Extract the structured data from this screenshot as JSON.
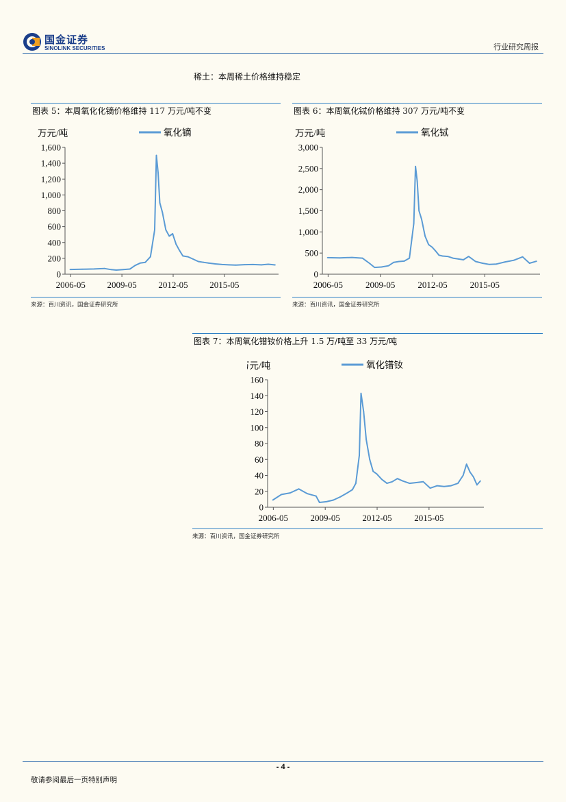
{
  "header": {
    "logo_cn": "国金证券",
    "logo_en": "SINOLINK SECURITIES",
    "report_type": "行业研究周报"
  },
  "section_title": "稀土：本周稀土价格维持稳定",
  "colors": {
    "line": "#5b9bd5",
    "rule": "#2e7fc4",
    "brand": "#1b3e8a"
  },
  "chart_data": [
    {
      "type": "line",
      "title": "图表 5：本周氧化化镝价格维持 117 万元/吨不变",
      "ylabel": "万元/吨",
      "legend": "氧化镝",
      "ylim": [
        0,
        1600
      ],
      "yticks": [
        "0",
        "200",
        "400",
        "600",
        "800",
        "1,000",
        "1,200",
        "1,400",
        "1,600"
      ],
      "xticks": [
        "2006-05",
        "2009-05",
        "2012-05",
        "2015-05"
      ],
      "x": [
        2006.3,
        2007.0,
        2007.7,
        2008.3,
        2008.7,
        2009.0,
        2009.4,
        2009.8,
        2010.1,
        2010.4,
        2010.7,
        2011.0,
        2011.25,
        2011.35,
        2011.45,
        2011.55,
        2011.7,
        2011.9,
        2012.1,
        2012.3,
        2012.5,
        2012.7,
        2012.9,
        2013.2,
        2013.5,
        2013.8,
        2014.1,
        2014.4,
        2014.8,
        2015.2,
        2015.6,
        2016.0,
        2016.5,
        2017.0,
        2017.5,
        2017.9,
        2018.3
      ],
      "values": [
        60,
        62,
        66,
        72,
        58,
        52,
        58,
        65,
        110,
        140,
        150,
        220,
        560,
        1500,
        1280,
        900,
        780,
        560,
        480,
        510,
        380,
        300,
        230,
        220,
        190,
        160,
        150,
        140,
        130,
        122,
        118,
        115,
        120,
        122,
        118,
        125,
        117
      ],
      "source": "来源：百川资讯，国金证券研究所"
    },
    {
      "type": "line",
      "title": "图表 6：本周氧化铽价格维持 307 万元/吨不变",
      "ylabel": "万元/吨",
      "legend": "氧化铽",
      "ylim": [
        0,
        3000
      ],
      "yticks": [
        "0",
        "500",
        "1,000",
        "1,500",
        "2,000",
        "2,500",
        "3,000"
      ],
      "xticks": [
        "2006-05",
        "2009-05",
        "2012-05",
        "2015-05"
      ],
      "x": [
        2006.3,
        2007.0,
        2007.7,
        2008.3,
        2008.7,
        2009.0,
        2009.4,
        2009.8,
        2010.1,
        2010.4,
        2010.7,
        2011.0,
        2011.25,
        2011.35,
        2011.45,
        2011.55,
        2011.7,
        2011.9,
        2012.1,
        2012.3,
        2012.5,
        2012.7,
        2012.9,
        2013.2,
        2013.5,
        2013.8,
        2014.1,
        2014.4,
        2014.8,
        2015.2,
        2015.6,
        2016.0,
        2016.5,
        2017.0,
        2017.5,
        2017.9,
        2018.3
      ],
      "values": [
        390,
        385,
        395,
        380,
        260,
        160,
        170,
        200,
        280,
        300,
        310,
        380,
        1200,
        2550,
        2200,
        1500,
        1300,
        900,
        700,
        640,
        550,
        450,
        430,
        420,
        380,
        360,
        340,
        420,
        300,
        260,
        230,
        240,
        290,
        330,
        410,
        260,
        307
      ],
      "source": "来源：百川资讯，国金证券研究所"
    },
    {
      "type": "line",
      "title": "图表 7：本周氧化镨钕价格上升 1.5 万/吨至 33 万元/吨",
      "ylabel": "万元/吨",
      "legend": "氧化镨钕",
      "ylim": [
        0,
        160
      ],
      "yticks": [
        "0",
        "20",
        "40",
        "60",
        "80",
        "100",
        "120",
        "140",
        "160"
      ],
      "xticks": [
        "2006-05",
        "2009-05",
        "2012-05",
        "2015-05"
      ],
      "x": [
        2006.3,
        2006.8,
        2007.3,
        2007.8,
        2008.3,
        2008.8,
        2009.0,
        2009.4,
        2009.8,
        2010.2,
        2010.6,
        2010.9,
        2011.1,
        2011.3,
        2011.4,
        2011.55,
        2011.7,
        2011.9,
        2012.1,
        2012.3,
        2012.6,
        2012.9,
        2013.2,
        2013.5,
        2013.8,
        2014.2,
        2014.6,
        2015.0,
        2015.4,
        2015.8,
        2016.2,
        2016.6,
        2017.0,
        2017.3,
        2017.5,
        2017.7,
        2017.9,
        2018.1,
        2018.3
      ],
      "values": [
        9,
        16,
        18,
        23,
        17,
        14,
        6,
        7,
        9,
        13,
        18,
        22,
        30,
        65,
        143,
        120,
        85,
        60,
        45,
        42,
        35,
        30,
        32,
        36,
        33,
        30,
        31,
        32,
        24,
        27,
        26,
        27,
        30,
        40,
        54,
        44,
        38,
        28,
        33
      ],
      "source": "来源：百川资讯，国金证券研究所"
    }
  ],
  "footer": {
    "page_number": "- 4 -",
    "disclaimer": "敬请参阅最后一页特别声明"
  }
}
